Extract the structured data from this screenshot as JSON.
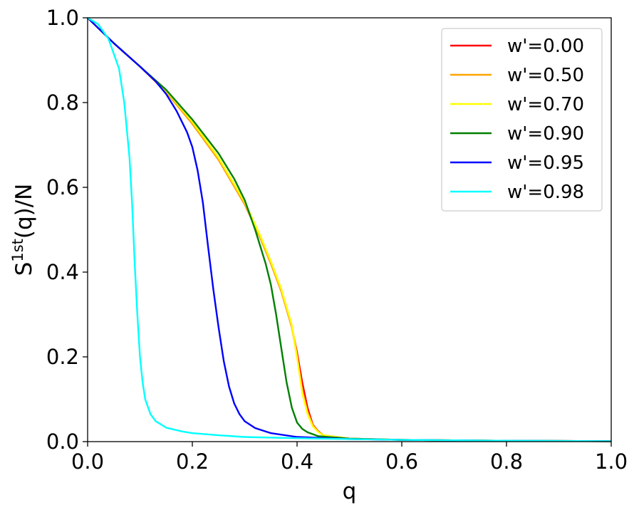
{
  "chart_data": {
    "type": "line",
    "xlabel": "q",
    "ylabel": {
      "base": "S",
      "sup": "1st",
      "tail": "(q)/N"
    },
    "xlim": [
      0,
      1
    ],
    "ylim": [
      0,
      1
    ],
    "xticks": [
      {
        "v": 0.0,
        "label": "0.0"
      },
      {
        "v": 0.2,
        "label": "0.2"
      },
      {
        "v": 0.4,
        "label": "0.4"
      },
      {
        "v": 0.6,
        "label": "0.6"
      },
      {
        "v": 0.8,
        "label": "0.8"
      },
      {
        "v": 1.0,
        "label": "1.0"
      }
    ],
    "yticks": [
      {
        "v": 0.0,
        "label": "0.0"
      },
      {
        "v": 0.2,
        "label": "0.2"
      },
      {
        "v": 0.4,
        "label": "0.4"
      },
      {
        "v": 0.6,
        "label": "0.6"
      },
      {
        "v": 0.8,
        "label": "0.8"
      },
      {
        "v": 1.0,
        "label": "1.0"
      }
    ],
    "grid": false,
    "legend_position": "top-right",
    "series": [
      {
        "name": "w'=0.00",
        "color": "#ff0000",
        "x": [
          0,
          0.05,
          0.1,
          0.15,
          0.2,
          0.25,
          0.3,
          0.33,
          0.35,
          0.37,
          0.39,
          0.4,
          0.41,
          0.42,
          0.43,
          0.44,
          0.45,
          0.5,
          0.6,
          0.8,
          1.0
        ],
        "y": [
          1.0,
          0.94,
          0.885,
          0.825,
          0.75,
          0.665,
          0.56,
          0.48,
          0.42,
          0.355,
          0.27,
          0.21,
          0.14,
          0.08,
          0.04,
          0.025,
          0.015,
          0.007,
          0.004,
          0.002,
          0.001
        ]
      },
      {
        "name": "w'=0.50",
        "color": "#ffa500",
        "x": [
          0,
          0.05,
          0.1,
          0.15,
          0.2,
          0.25,
          0.3,
          0.33,
          0.35,
          0.37,
          0.39,
          0.4,
          0.41,
          0.42,
          0.43,
          0.44,
          0.45,
          0.5,
          0.6,
          0.8,
          1.0
        ],
        "y": [
          1.0,
          0.94,
          0.885,
          0.825,
          0.75,
          0.665,
          0.56,
          0.48,
          0.42,
          0.355,
          0.27,
          0.2,
          0.12,
          0.07,
          0.038,
          0.024,
          0.015,
          0.007,
          0.004,
          0.002,
          0.001
        ]
      },
      {
        "name": "w'=0.70",
        "color": "#ffff00",
        "x": [
          0,
          0.05,
          0.1,
          0.15,
          0.2,
          0.25,
          0.3,
          0.33,
          0.35,
          0.37,
          0.39,
          0.4,
          0.41,
          0.42,
          0.43,
          0.44,
          0.45,
          0.5,
          0.6,
          0.8,
          1.0
        ],
        "y": [
          1.0,
          0.94,
          0.885,
          0.828,
          0.755,
          0.67,
          0.565,
          0.485,
          0.425,
          0.36,
          0.275,
          0.2,
          0.115,
          0.065,
          0.036,
          0.023,
          0.015,
          0.007,
          0.004,
          0.002,
          0.001
        ]
      },
      {
        "name": "w'=0.90",
        "color": "#008000",
        "x": [
          0,
          0.05,
          0.1,
          0.15,
          0.2,
          0.25,
          0.28,
          0.3,
          0.32,
          0.34,
          0.35,
          0.36,
          0.37,
          0.38,
          0.39,
          0.4,
          0.41,
          0.42,
          0.44,
          0.5,
          0.6,
          0.8,
          1.0
        ],
        "y": [
          1.0,
          0.94,
          0.885,
          0.83,
          0.76,
          0.68,
          0.62,
          0.57,
          0.5,
          0.42,
          0.37,
          0.3,
          0.22,
          0.14,
          0.08,
          0.045,
          0.03,
          0.022,
          0.013,
          0.007,
          0.004,
          0.002,
          0.001
        ]
      },
      {
        "name": "w'=0.95",
        "color": "#0000ff",
        "x": [
          0,
          0.05,
          0.1,
          0.13,
          0.15,
          0.17,
          0.19,
          0.2,
          0.21,
          0.22,
          0.23,
          0.24,
          0.25,
          0.26,
          0.27,
          0.28,
          0.29,
          0.3,
          0.32,
          0.35,
          0.4,
          0.5,
          0.6,
          0.8,
          1.0
        ],
        "y": [
          1.0,
          0.94,
          0.885,
          0.85,
          0.82,
          0.78,
          0.73,
          0.695,
          0.64,
          0.565,
          0.46,
          0.36,
          0.27,
          0.19,
          0.13,
          0.09,
          0.065,
          0.048,
          0.032,
          0.02,
          0.011,
          0.006,
          0.004,
          0.002,
          0.001
        ]
      },
      {
        "name": "w'=0.98",
        "color": "#00ffff",
        "x": [
          0,
          0.02,
          0.04,
          0.06,
          0.07,
          0.08,
          0.085,
          0.09,
          0.095,
          0.1,
          0.105,
          0.11,
          0.12,
          0.13,
          0.15,
          0.18,
          0.2,
          0.25,
          0.3,
          0.4,
          0.5,
          0.6,
          0.8,
          1.0
        ],
        "y": [
          1.0,
          0.985,
          0.95,
          0.88,
          0.8,
          0.67,
          0.56,
          0.42,
          0.3,
          0.2,
          0.14,
          0.1,
          0.065,
          0.048,
          0.033,
          0.024,
          0.02,
          0.015,
          0.011,
          0.008,
          0.006,
          0.004,
          0.002,
          0.001
        ]
      }
    ]
  }
}
